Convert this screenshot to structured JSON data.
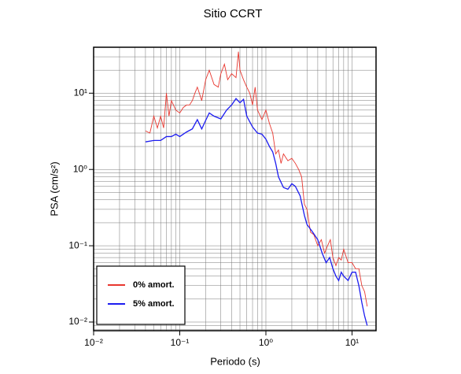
{
  "chart_data": {
    "type": "line",
    "title": "Sitio CCRT",
    "x_label": "Periodo (s)",
    "y_label": "PSA (cm/s²)",
    "xscale": "log",
    "yscale": "log",
    "grid": true,
    "legend_position": "lower left",
    "xlim": [
      0.01,
      19
    ],
    "ylim": [
      0.0077,
      40
    ],
    "xticks": [
      {
        "value": 0.01,
        "label": "10⁻²"
      },
      {
        "value": 0.1,
        "label": "10⁻¹"
      },
      {
        "value": 1,
        "label": "10⁰"
      },
      {
        "value": 10,
        "label": "10¹"
      }
    ],
    "yticks": [
      {
        "value": 0.01,
        "label": "10⁻²"
      },
      {
        "value": 0.1,
        "label": "10⁻¹"
      },
      {
        "value": 1,
        "label": "10⁰"
      },
      {
        "value": 10,
        "label": "10¹"
      }
    ],
    "xminor": [
      0.02,
      0.03,
      0.04,
      0.05,
      0.06,
      0.07,
      0.08,
      0.09,
      0.2,
      0.3,
      0.4,
      0.5,
      0.6,
      0.7,
      0.8,
      0.9,
      2,
      3,
      4,
      5,
      6,
      7,
      8,
      9
    ],
    "yminor": [
      0.008,
      0.009,
      0.02,
      0.03,
      0.04,
      0.05,
      0.06,
      0.07,
      0.08,
      0.09,
      0.2,
      0.3,
      0.4,
      0.5,
      0.6,
      0.7,
      0.8,
      0.9,
      2,
      3,
      4,
      5,
      6,
      7,
      8,
      9,
      20,
      30,
      40
    ],
    "series": [
      {
        "name": "0% amort.",
        "color": "#e8372f",
        "x": [
          0.04,
          0.045,
          0.05,
          0.055,
          0.06,
          0.065,
          0.07,
          0.075,
          0.08,
          0.09,
          0.1,
          0.11,
          0.12,
          0.13,
          0.14,
          0.15,
          0.16,
          0.18,
          0.2,
          0.22,
          0.25,
          0.28,
          0.3,
          0.33,
          0.36,
          0.4,
          0.45,
          0.48,
          0.5,
          0.55,
          0.6,
          0.65,
          0.7,
          0.75,
          0.8,
          0.9,
          1.0,
          1.1,
          1.2,
          1.3,
          1.4,
          1.5,
          1.6,
          1.8,
          2.0,
          2.2,
          2.4,
          2.6,
          2.8,
          3.0,
          3.3,
          3.6,
          4.0,
          4.4,
          4.8,
          5.2,
          5.6,
          6.0,
          6.5,
          7,
          7.5,
          8,
          9,
          10,
          11,
          12,
          13,
          14,
          15
        ],
        "values": [
          3.2,
          3.0,
          5.0,
          3.5,
          5.0,
          3.5,
          10,
          5,
          8,
          6,
          5.5,
          6.5,
          7,
          7,
          8,
          10,
          12,
          8,
          15,
          20,
          13,
          12,
          18,
          24,
          15,
          18,
          16,
          35,
          20,
          15,
          12,
          10,
          7,
          12,
          6,
          4.5,
          6,
          4,
          3,
          1.6,
          1.8,
          1.2,
          1.6,
          1.3,
          1.4,
          1.2,
          1.0,
          0.8,
          0.35,
          0.3,
          0.15,
          0.14,
          0.1,
          0.12,
          0.08,
          0.1,
          0.12,
          0.07,
          0.055,
          0.07,
          0.065,
          0.09,
          0.06,
          0.06,
          0.05,
          0.05,
          0.03,
          0.025,
          0.016
        ]
      },
      {
        "name": "5% amort.",
        "color": "#1c1cf0",
        "x": [
          0.04,
          0.05,
          0.06,
          0.07,
          0.08,
          0.09,
          0.1,
          0.12,
          0.14,
          0.16,
          0.18,
          0.2,
          0.22,
          0.25,
          0.3,
          0.35,
          0.4,
          0.45,
          0.5,
          0.55,
          0.6,
          0.7,
          0.8,
          0.9,
          1.0,
          1.1,
          1.2,
          1.3,
          1.4,
          1.6,
          1.8,
          2.0,
          2.2,
          2.5,
          2.8,
          3.0,
          3.5,
          4.0,
          4.5,
          5.0,
          5.5,
          6.0,
          6.5,
          7,
          7.5,
          8,
          9,
          10,
          11,
          12,
          13,
          14,
          15
        ],
        "values": [
          2.3,
          2.4,
          2.4,
          2.7,
          2.7,
          2.9,
          2.7,
          3.1,
          3.4,
          4.5,
          3.4,
          4.4,
          5.5,
          5.0,
          4.6,
          6.0,
          7.0,
          8.5,
          7.5,
          8.3,
          5.0,
          3.6,
          3.0,
          2.9,
          2.5,
          2.0,
          1.7,
          1.2,
          0.8,
          0.58,
          0.55,
          0.65,
          0.6,
          0.45,
          0.25,
          0.19,
          0.15,
          0.12,
          0.08,
          0.06,
          0.07,
          0.05,
          0.04,
          0.035,
          0.045,
          0.04,
          0.035,
          0.045,
          0.045,
          0.03,
          0.018,
          0.012,
          0.009
        ]
      }
    ]
  }
}
